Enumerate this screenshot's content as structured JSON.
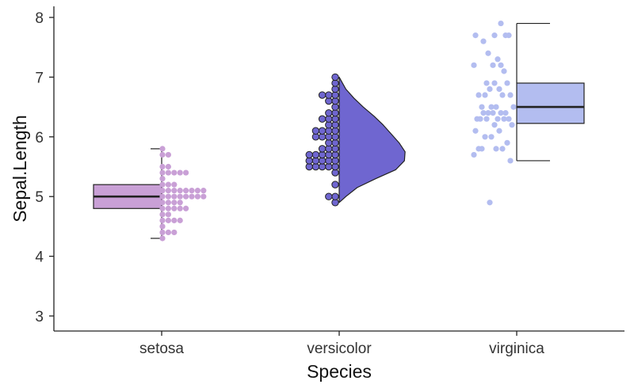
{
  "chart_data": {
    "type": "raincloud",
    "title": "",
    "xlabel": "Species",
    "ylabel": "Sepal.Length",
    "categories": [
      "setosa",
      "versicolor",
      "virginica"
    ],
    "ylim": [
      2.75,
      8.2
    ],
    "yticks": [
      "3",
      "4",
      "5",
      "6",
      "7",
      "8"
    ],
    "grid": false,
    "legend": "none",
    "colors": {
      "setosa": "#c9a0d6",
      "versicolor": "#6f66d0",
      "virginica": "#b3bdf0",
      "outline": "#222222",
      "axis": "#222222"
    },
    "series": [
      {
        "name": "setosa",
        "display": "boxplot + dotplot",
        "box": {
          "min": 4.3,
          "q1": 4.8,
          "median": 5.0,
          "q3": 5.2,
          "max": 5.8
        },
        "dot_counts": [
          {
            "value": 4.3,
            "count": 1
          },
          {
            "value": 4.4,
            "count": 3
          },
          {
            "value": 4.5,
            "count": 1
          },
          {
            "value": 4.6,
            "count": 4
          },
          {
            "value": 4.7,
            "count": 2
          },
          {
            "value": 4.8,
            "count": 5
          },
          {
            "value": 4.9,
            "count": 4
          },
          {
            "value": 5.0,
            "count": 8
          },
          {
            "value": 5.1,
            "count": 8
          },
          {
            "value": 5.2,
            "count": 3
          },
          {
            "value": 5.3,
            "count": 1
          },
          {
            "value": 5.4,
            "count": 5
          },
          {
            "value": 5.5,
            "count": 2
          },
          {
            "value": 5.7,
            "count": 2
          },
          {
            "value": 5.8,
            "count": 1
          }
        ]
      },
      {
        "name": "versicolor",
        "display": "dotplot + half violin",
        "dot_counts": [
          {
            "value": 4.9,
            "count": 1
          },
          {
            "value": 5.0,
            "count": 2
          },
          {
            "value": 5.2,
            "count": 1
          },
          {
            "value": 5.4,
            "count": 1
          },
          {
            "value": 5.5,
            "count": 5
          },
          {
            "value": 5.6,
            "count": 5
          },
          {
            "value": 5.7,
            "count": 5
          },
          {
            "value": 5.8,
            "count": 3
          },
          {
            "value": 5.9,
            "count": 2
          },
          {
            "value": 6.0,
            "count": 4
          },
          {
            "value": 6.1,
            "count": 4
          },
          {
            "value": 6.2,
            "count": 2
          },
          {
            "value": 6.3,
            "count": 3
          },
          {
            "value": 6.4,
            "count": 2
          },
          {
            "value": 6.5,
            "count": 1
          },
          {
            "value": 6.6,
            "count": 2
          },
          {
            "value": 6.7,
            "count": 3
          },
          {
            "value": 6.8,
            "count": 1
          },
          {
            "value": 6.9,
            "count": 1
          },
          {
            "value": 7.0,
            "count": 1
          }
        ],
        "density": [
          {
            "value": 4.9,
            "width": 0.0
          },
          {
            "value": 5.0,
            "width": 0.1
          },
          {
            "value": 5.15,
            "width": 0.27
          },
          {
            "value": 5.3,
            "width": 0.55
          },
          {
            "value": 5.45,
            "width": 0.85
          },
          {
            "value": 5.6,
            "width": 0.98
          },
          {
            "value": 5.75,
            "width": 0.99
          },
          {
            "value": 5.9,
            "width": 0.9
          },
          {
            "value": 6.05,
            "width": 0.78
          },
          {
            "value": 6.2,
            "width": 0.66
          },
          {
            "value": 6.35,
            "width": 0.52
          },
          {
            "value": 6.5,
            "width": 0.36
          },
          {
            "value": 6.65,
            "width": 0.22
          },
          {
            "value": 6.8,
            "width": 0.1
          },
          {
            "value": 7.0,
            "width": 0.0
          }
        ]
      },
      {
        "name": "virginica",
        "display": "jittered points + boxplot",
        "box": {
          "min": 5.6,
          "q1": 6.225,
          "median": 6.5,
          "q3": 6.9,
          "max": 7.9
        },
        "points": [
          4.9,
          5.6,
          5.7,
          5.8,
          5.8,
          5.8,
          5.8,
          5.9,
          6.0,
          6.0,
          6.1,
          6.1,
          6.2,
          6.2,
          6.3,
          6.3,
          6.3,
          6.3,
          6.3,
          6.3,
          6.4,
          6.4,
          6.4,
          6.4,
          6.4,
          6.5,
          6.5,
          6.5,
          6.5,
          6.7,
          6.7,
          6.7,
          6.7,
          6.8,
          6.8,
          6.9,
          6.9,
          6.9,
          7.1,
          7.2,
          7.2,
          7.2,
          7.3,
          7.4,
          7.6,
          7.7,
          7.7,
          7.7,
          7.7,
          7.9
        ]
      }
    ]
  }
}
